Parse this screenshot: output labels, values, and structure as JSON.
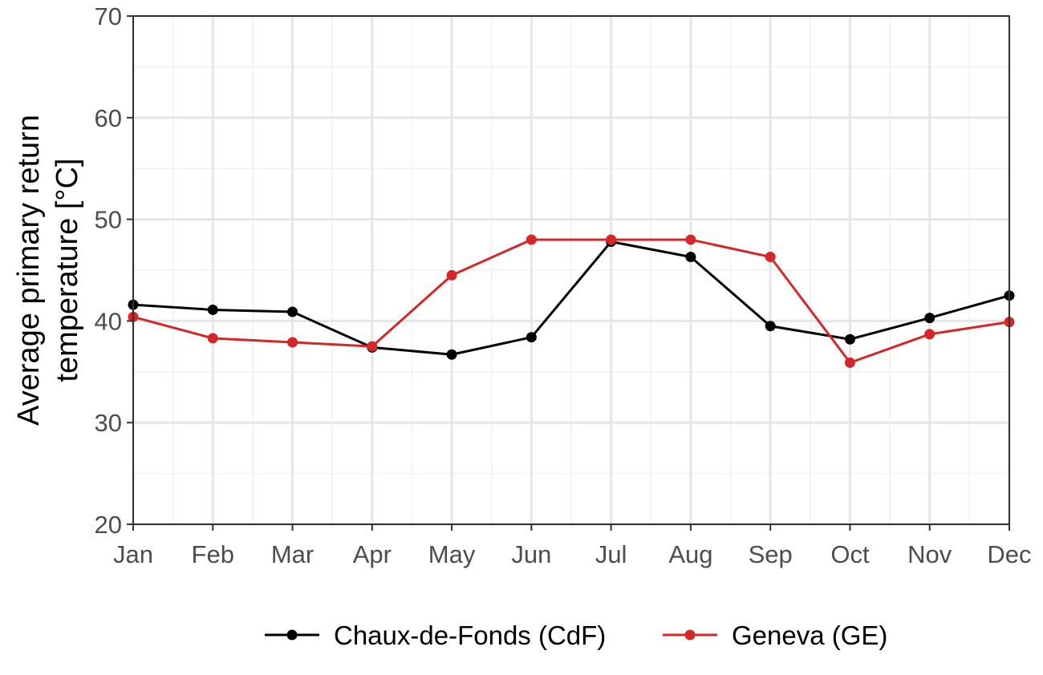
{
  "chart_data": {
    "type": "line",
    "categories": [
      "Jan",
      "Feb",
      "Mar",
      "Apr",
      "May",
      "Jun",
      "Jul",
      "Aug",
      "Sep",
      "Oct",
      "Nov",
      "Dec"
    ],
    "series": [
      {
        "name": "Chaux-de-Fonds (CdF)",
        "color": "#000000",
        "values": [
          41.6,
          41.1,
          40.9,
          37.4,
          36.7,
          38.4,
          47.8,
          46.3,
          39.5,
          38.2,
          40.3,
          42.5
        ]
      },
      {
        "name": "Geneva (GE)",
        "color": "#d62728",
        "values": [
          40.4,
          38.3,
          37.9,
          37.5,
          44.5,
          48.0,
          48.0,
          48.0,
          46.3,
          35.9,
          38.7,
          39.9
        ]
      }
    ],
    "title": "",
    "xlabel": "",
    "ylabel_lines": [
      "Average primary return",
      "temperature [°C]"
    ],
    "ylim": [
      20,
      70
    ],
    "yticks": [
      20,
      30,
      40,
      50,
      60,
      70
    ],
    "grid": true,
    "legend_position": "bottom"
  }
}
